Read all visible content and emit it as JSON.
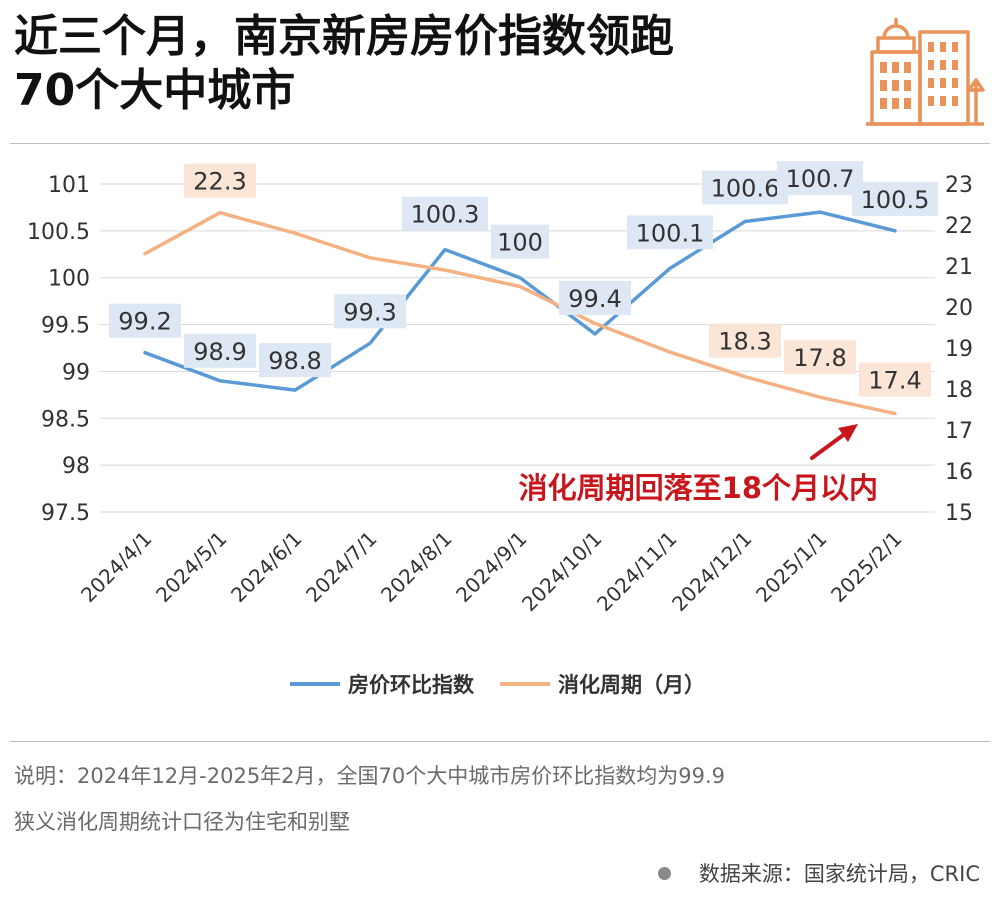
{
  "title": {
    "line1": "近三个月，南京新房房价指数领跑",
    "line2": "70个大中城市"
  },
  "logo_icon": "city-buildings-icon",
  "notes": {
    "line1": "说明：2024年12月-2025年2月，全国70个大中城市房价环比指数均为99.9",
    "line2": "狭义消化周期统计口径为住宅和别墅"
  },
  "source": "数据来源：国家统计局，CRIC",
  "annotation": {
    "text": "消化周期回落至18个月以内",
    "color": "#c8161d"
  },
  "colors": {
    "price_line": "#5b9bd5",
    "price_label_bg": "#dde8f4",
    "cycle_line": "#f4b183",
    "cycle_label_bg": "#fbe5d6",
    "logo": "#e8935a"
  },
  "chart_data": {
    "type": "line",
    "categories": [
      "2024/4/1",
      "2024/5/1",
      "2024/6/1",
      "2024/7/1",
      "2024/8/1",
      "2024/9/1",
      "2024/10/1",
      "2024/11/1",
      "2024/12/1",
      "2025/1/1",
      "2025/2/1"
    ],
    "y_left": {
      "ylim": [
        97.5,
        101
      ],
      "ticks": [
        "101",
        "100.5",
        "100",
        "99.5",
        "99",
        "98.5",
        "98",
        "97.5"
      ]
    },
    "y_right": {
      "ylim": [
        15,
        23
      ],
      "ticks": [
        "23",
        "22",
        "21",
        "20",
        "19",
        "18",
        "17",
        "16",
        "15"
      ]
    },
    "grid": true,
    "legend_position": "bottom",
    "series": [
      {
        "name": "房价环比指数",
        "axis": "left",
        "values": [
          99.2,
          98.9,
          98.8,
          99.3,
          100.3,
          100.0,
          99.4,
          100.1,
          100.6,
          100.7,
          100.5
        ],
        "labels": [
          "99.2",
          "98.9",
          "98.8",
          "99.3",
          "100.3",
          "100",
          "99.4",
          "100.1",
          "100.6",
          "100.7",
          "100.5"
        ]
      },
      {
        "name": "消化周期（月）",
        "axis": "right",
        "values": [
          21.3,
          22.3,
          21.8,
          21.2,
          20.9,
          20.5,
          19.6,
          18.9,
          18.3,
          17.8,
          17.4
        ],
        "labels": [
          null,
          "22.3",
          null,
          null,
          null,
          null,
          null,
          null,
          "18.3",
          "17.8",
          "17.4"
        ]
      }
    ]
  }
}
